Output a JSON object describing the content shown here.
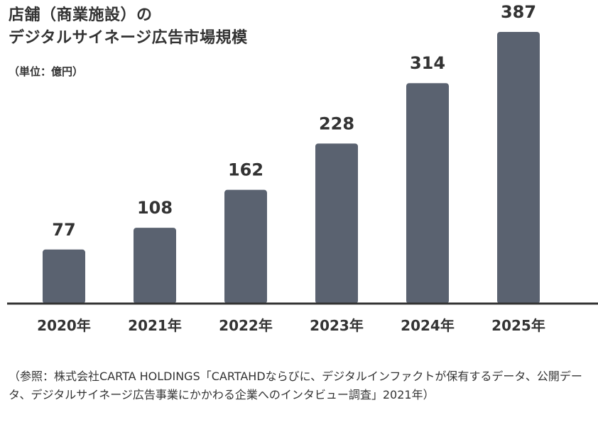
{
  "chart_data": {
    "type": "bar",
    "title_line1": "店舗（商業施設）の",
    "title_line2": "デジタルサイネージ広告市場規模",
    "unit_label": "（単位：億円）",
    "categories": [
      "2020年",
      "2021年",
      "2022年",
      "2023年",
      "2024年",
      "2025年"
    ],
    "values": [
      77,
      108,
      162,
      228,
      314,
      387
    ],
    "xlabel": "",
    "ylabel": "",
    "ylim": [
      0,
      387
    ],
    "grid": false,
    "bar_color": "#5a6270"
  },
  "source_note": "（参照：株式会社CARTA HOLDINGS「CARTAHDならびに、デジタルインファクトが保有するデータ、公開データ、デジタルサイネージ広告事業にかかわる企業へのインタビュー調査」2021年）"
}
